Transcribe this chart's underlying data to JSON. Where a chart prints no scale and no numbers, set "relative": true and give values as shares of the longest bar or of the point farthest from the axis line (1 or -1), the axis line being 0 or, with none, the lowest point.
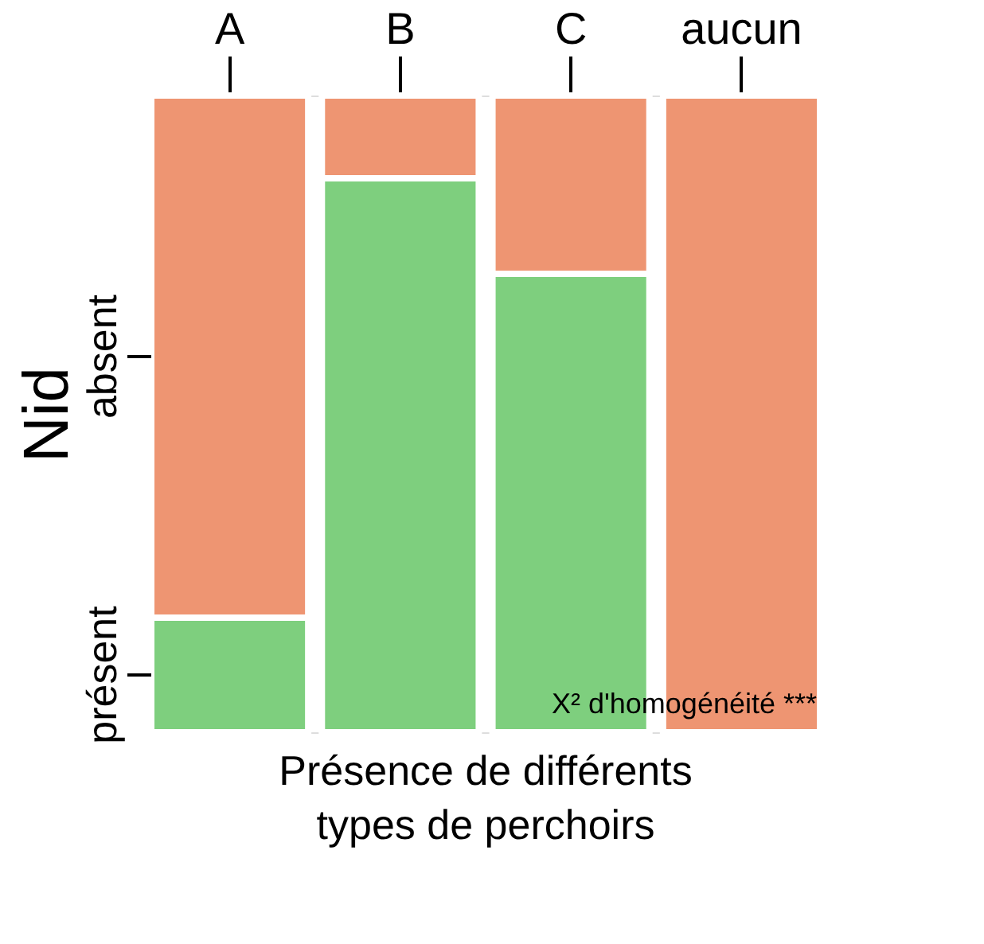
{
  "chart_data": {
    "type": "bar",
    "stacked": true,
    "relative": true,
    "ylabel": "Nid",
    "xlabel": "Présence de différents types de perchoirs",
    "categories": [
      "A",
      "B",
      "C",
      "aucun"
    ],
    "series": [
      {
        "name": "présent",
        "color": "#7ecf7e",
        "values": [
          0.18,
          0.87,
          0.72,
          0
        ]
      },
      {
        "name": "absent",
        "color": "#ee9572",
        "values": [
          0.82,
          0.13,
          0.28,
          1
        ]
      }
    ],
    "annotations": [
      "X² d'homogénéité ***"
    ],
    "legend": false,
    "grid": false
  }
}
